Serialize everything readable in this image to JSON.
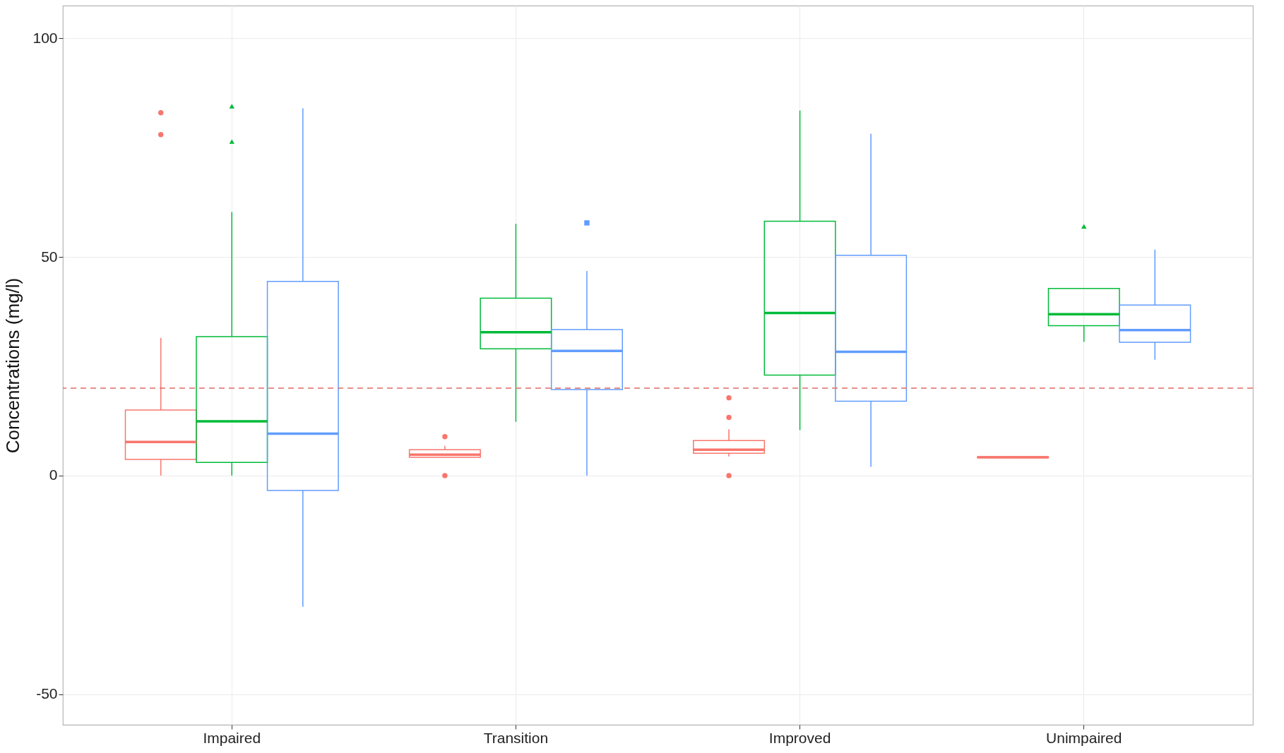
{
  "chart_data": {
    "type": "box",
    "ylabel": "Concentrations (mg/l)",
    "categories": [
      "Impaired",
      "Transition",
      "Improved",
      "Unimpaired"
    ],
    "ylim": [
      -57,
      107.5
    ],
    "yticks": [
      -50,
      0,
      50,
      100
    ],
    "grid": true,
    "ref_lines": [
      {
        "axis": "y",
        "value": 20,
        "color": "#e06c66",
        "line_style": "dashed"
      }
    ],
    "series": [
      {
        "color": "#f8766d",
        "marker": "circle",
        "boxes": [
          {
            "low": 0,
            "q1": 3.7,
            "median": 7.7,
            "q3": 15,
            "high": 31.5,
            "outliers": [
              78,
              83
            ]
          },
          {
            "low": 4.2,
            "q1": 4.2,
            "median": 4.8,
            "q3": 5.9,
            "high": 6.8,
            "outliers": [
              0,
              8.9
            ]
          },
          {
            "low": 4.4,
            "q1": 5.1,
            "median": 5.9,
            "q3": 8,
            "high": 10.6,
            "outliers": [
              0,
              13.3,
              17.8
            ]
          },
          {
            "low": 4,
            "q1": 4.1,
            "median": 4.2,
            "q3": 4.3,
            "high": 4.4
          }
        ]
      },
      {
        "color": "#00ba38",
        "marker": "triangle",
        "boxes": [
          {
            "low": 0,
            "q1": 3,
            "median": 12.4,
            "q3": 31.8,
            "high": 60.3,
            "outliers": [
              76.4,
              84.5
            ]
          },
          {
            "low": 12.3,
            "q1": 29,
            "median": 32.8,
            "q3": 40.6,
            "high": 57.6
          },
          {
            "low": 10.4,
            "q1": 23,
            "median": 37.2,
            "q3": 58.2,
            "high": 83.5
          },
          {
            "low": 30.6,
            "q1": 34.3,
            "median": 36.9,
            "q3": 42.8,
            "high": 42.8,
            "outliers": [
              57
            ]
          }
        ]
      },
      {
        "color": "#619cff",
        "marker": "square",
        "boxes": [
          {
            "low": -30,
            "q1": -3.4,
            "median": 9.6,
            "q3": 44.4,
            "high": 84
          },
          {
            "low": 0,
            "q1": 19.7,
            "median": 28.5,
            "q3": 33.4,
            "high": 46.8,
            "outliers": [
              57.8
            ]
          },
          {
            "low": 2,
            "q1": 17,
            "median": 28.3,
            "q3": 50.4,
            "high": 78.2
          },
          {
            "low": 26.5,
            "q1": 30.5,
            "median": 33.3,
            "q3": 39,
            "high": 51.7
          }
        ]
      }
    ]
  }
}
